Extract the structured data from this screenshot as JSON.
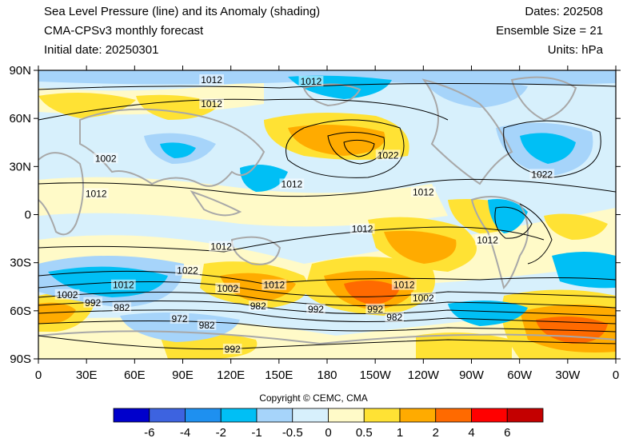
{
  "header": {
    "title_line1": "Sea Level Pressure (line) and its Anomaly (shading)",
    "title_line2": "CMA-CPSv3 monthly forecast",
    "title_line3": "Initial date: 20250301",
    "dates": "Dates: 202508",
    "ensemble": "Ensemble Size = 21",
    "units": "Units: hPa"
  },
  "axes": {
    "lat_labels": [
      "90N",
      "60N",
      "30N",
      "0",
      "30S",
      "60S",
      "90S"
    ],
    "lon_labels": [
      "0",
      "30E",
      "60E",
      "90E",
      "120E",
      "150E",
      "180",
      "150W",
      "120W",
      "90W",
      "60W",
      "30W",
      "0"
    ]
  },
  "contour_labels": [
    {
      "text": "1012",
      "lon": 108,
      "lat": 84
    },
    {
      "text": "1012",
      "lon": 170,
      "lat": 83
    },
    {
      "text": "1012",
      "lon": 108,
      "lat": 69
    },
    {
      "text": "1002",
      "lon": 42,
      "lat": 35
    },
    {
      "text": "1012",
      "lon": 36,
      "lat": 13
    },
    {
      "text": "1022",
      "lon": 218,
      "lat": 37
    },
    {
      "text": "1012",
      "lon": 158,
      "lat": 19
    },
    {
      "text": "1012",
      "lon": 240,
      "lat": 14
    },
    {
      "text": "1022",
      "lon": 314,
      "lat": 25
    },
    {
      "text": "1012",
      "lon": 202,
      "lat": -9
    },
    {
      "text": "1012",
      "lon": 114,
      "lat": -20
    },
    {
      "text": "1012",
      "lon": 280,
      "lat": -16
    },
    {
      "text": "1022",
      "lon": 93,
      "lat": -35
    },
    {
      "text": "1012",
      "lon": 53,
      "lat": -44
    },
    {
      "text": "1012",
      "lon": 147,
      "lat": -44
    },
    {
      "text": "1012",
      "lon": 228,
      "lat": -44
    },
    {
      "text": "1002",
      "lon": 18,
      "lat": -50
    },
    {
      "text": "1002",
      "lon": 118,
      "lat": -46
    },
    {
      "text": "1002",
      "lon": 240,
      "lat": -52
    },
    {
      "text": "992",
      "lon": 34,
      "lat": -55
    },
    {
      "text": "992",
      "lon": 173,
      "lat": -59
    },
    {
      "text": "992",
      "lon": 210,
      "lat": -59
    },
    {
      "text": "982",
      "lon": 52,
      "lat": -58
    },
    {
      "text": "982",
      "lon": 137,
      "lat": -57
    },
    {
      "text": "982",
      "lon": 222,
      "lat": -64
    },
    {
      "text": "972",
      "lon": 88,
      "lat": -65
    },
    {
      "text": "982",
      "lon": 105,
      "lat": -69
    },
    {
      "text": "992",
      "lon": 121,
      "lat": -84
    }
  ],
  "legend": {
    "copyright": "Copyright © CEMC, CMA",
    "labels": [
      "-6",
      "-4",
      "-2",
      "-1",
      "-0.5",
      "0",
      "0.5",
      "1",
      "2",
      "4",
      "6"
    ],
    "colors": [
      "#0000cc",
      "#3d63e0",
      "#1e90f0",
      "#00bff5",
      "#a6d4fa",
      "#d7f0fc",
      "#fffac8",
      "#ffe234",
      "#ffab00",
      "#ff6a00",
      "#ff0000",
      "#c40000"
    ]
  },
  "map": {
    "land_outline_color": "#a8a8a8",
    "contour_color": "#000000"
  }
}
